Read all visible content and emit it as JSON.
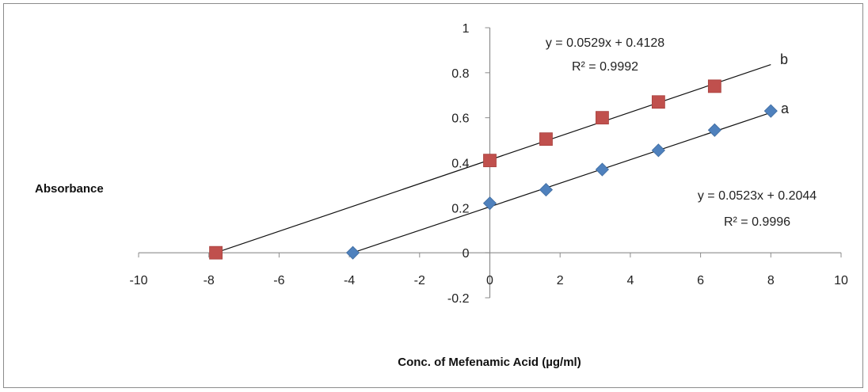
{
  "chart_data": {
    "type": "scatter",
    "title": "",
    "xlabel": "Conc. of Mefenamic Acid (µg/ml)",
    "ylabel": "Absorbance",
    "xlim": [
      -10,
      10
    ],
    "ylim": [
      -0.2,
      1
    ],
    "x_ticks": [
      -10,
      -8,
      -6,
      -4,
      -2,
      0,
      2,
      4,
      6,
      8,
      10
    ],
    "y_ticks": [
      -0.2,
      0,
      0.2,
      0.4,
      0.6,
      0.8,
      1
    ],
    "x_tick_labels": [
      "-10",
      "-8",
      "-6",
      "-4",
      "-2",
      "0",
      "2",
      "4",
      "6",
      "8",
      "10"
    ],
    "y_tick_labels": [
      "-0.2",
      "0",
      "0.2",
      "0.4",
      "0.6",
      "0.8",
      "1"
    ],
    "grid": false,
    "series": [
      {
        "name": "a",
        "marker": "diamond",
        "color": "#4f81bd",
        "points": [
          [
            -3.9,
            0.0
          ],
          [
            0,
            0.22
          ],
          [
            1.6,
            0.28
          ],
          [
            3.2,
            0.37
          ],
          [
            4.8,
            0.455
          ],
          [
            6.4,
            0.545
          ],
          [
            8.0,
            0.63
          ]
        ],
        "trendline": {
          "slope": 0.0523,
          "intercept": 0.2044,
          "x_range": [
            -3.9,
            8.0
          ]
        },
        "equation": "y = 0.0523x + 0.2044",
        "r2": "R² = 0.9996"
      },
      {
        "name": "b",
        "marker": "square",
        "color": "#c0504d",
        "points": [
          [
            -7.8,
            0.0
          ],
          [
            0,
            0.41
          ],
          [
            1.6,
            0.505
          ],
          [
            3.2,
            0.6
          ],
          [
            4.8,
            0.67
          ],
          [
            6.4,
            0.74
          ]
        ],
        "trendline": {
          "slope": 0.0529,
          "intercept": 0.4128,
          "x_range": [
            -7.8,
            8.0
          ]
        },
        "equation": "y = 0.0529x + 0.4128",
        "r2": "R² = 0.9992"
      }
    ]
  }
}
